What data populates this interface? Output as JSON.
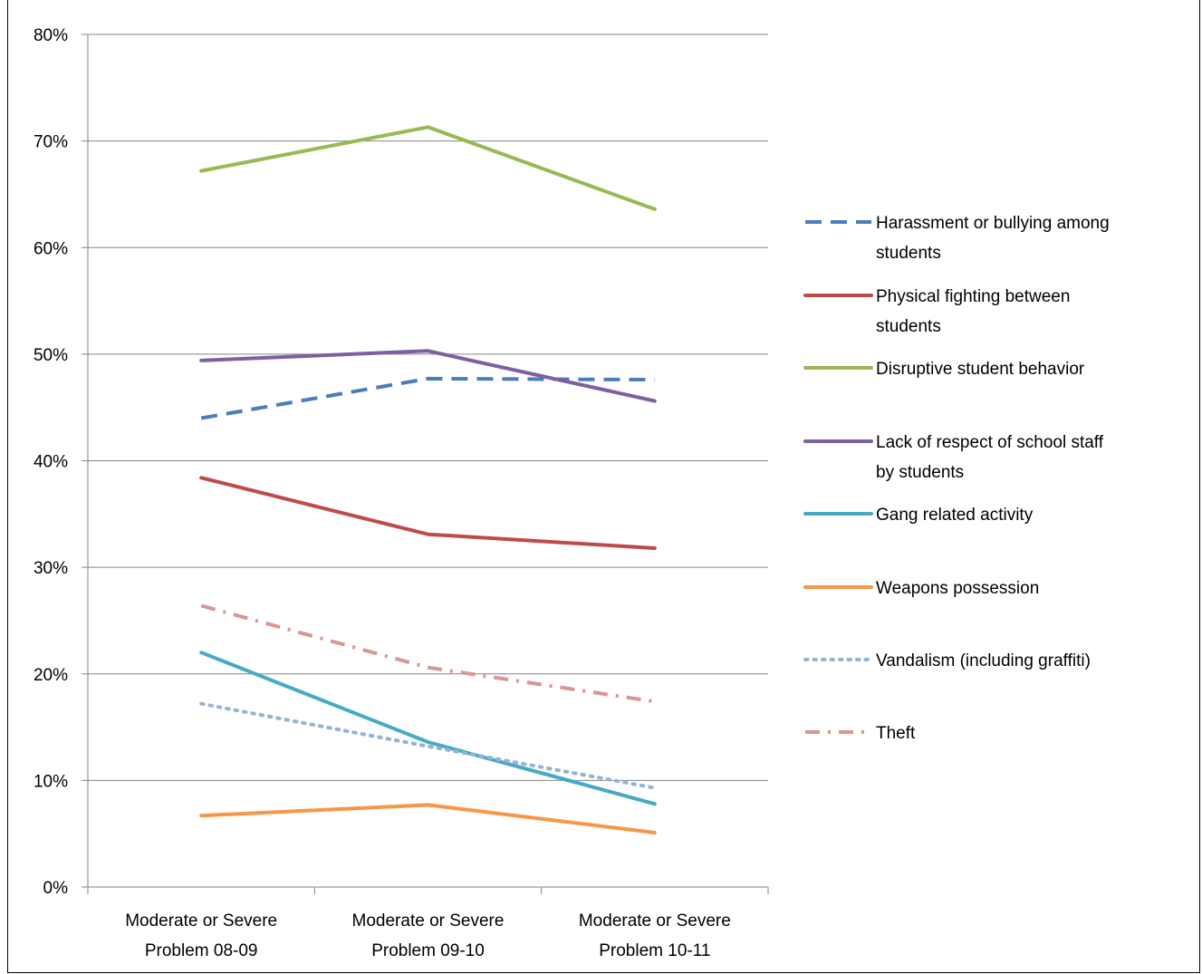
{
  "chart_data": {
    "type": "line",
    "title": "",
    "categories": [
      [
        "Moderate or Severe",
        "Problem 08-09"
      ],
      [
        "Moderate or Severe",
        "Problem 09-10"
      ],
      [
        "Moderate or Severe",
        "Problem 10-11"
      ]
    ],
    "y_tick_labels": [
      "0%",
      "10%",
      "20%",
      "30%",
      "40%",
      "50%",
      "60%",
      "70%",
      "80%"
    ],
    "ylim": [
      0,
      0.8
    ],
    "grid": true,
    "legend_position": "right",
    "series": [
      {
        "name": "Harassment or bullying among students",
        "color": "#4A7EBB",
        "dash": "dash",
        "values": [
          0.44,
          0.477,
          0.476
        ]
      },
      {
        "name": "Physical fighting between students",
        "color": "#BE4B48",
        "dash": "solid",
        "values": [
          0.384,
          0.331,
          0.318
        ]
      },
      {
        "name": "Disruptive student behavior",
        "color": "#98B954",
        "dash": "solid",
        "values": [
          0.672,
          0.713,
          0.636
        ]
      },
      {
        "name": "Lack of respect of school staff by students",
        "color": "#7D60A0",
        "dash": "solid",
        "values": [
          0.494,
          0.503,
          0.456
        ]
      },
      {
        "name": "Gang related activity",
        "color": "#46AAC5",
        "dash": "solid",
        "values": [
          0.22,
          0.136,
          0.078
        ]
      },
      {
        "name": "Weapons possession",
        "color": "#F79646",
        "dash": "solid",
        "values": [
          0.067,
          0.077,
          0.051
        ]
      },
      {
        "name": "Vandalism (including graffiti)",
        "color": "#95B3D7",
        "dash": "dot",
        "values": [
          0.172,
          0.132,
          0.093
        ]
      },
      {
        "name": "Theft",
        "color": "#D99694",
        "dash": "dashdot",
        "values": [
          0.264,
          0.206,
          0.174
        ]
      }
    ],
    "legend_labels": [
      [
        "Harassment or bullying among",
        "students"
      ],
      [
        "Physical fighting between",
        "students"
      ],
      [
        "Disruptive student behavior"
      ],
      [
        "Lack of respect of school staff",
        "by students"
      ],
      [
        "Gang related activity"
      ],
      [
        "Weapons possession"
      ],
      [
        "Vandalism (including graffiti)"
      ],
      [
        "Theft"
      ]
    ]
  }
}
